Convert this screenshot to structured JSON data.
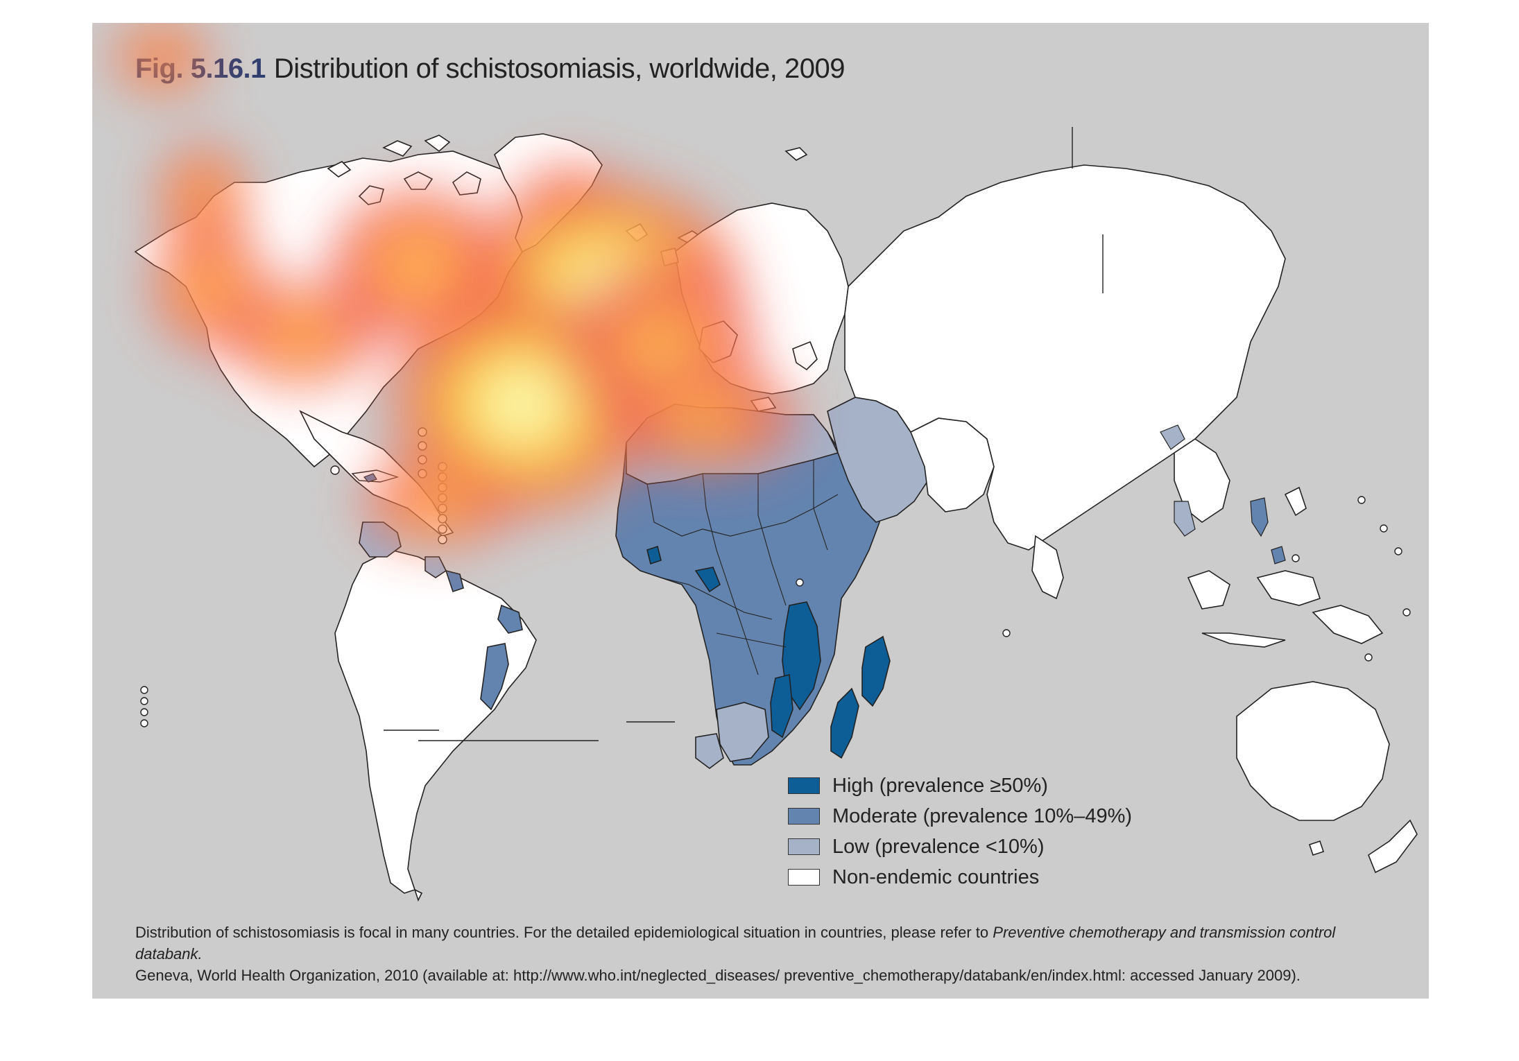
{
  "figure": {
    "number": "Fig. 5.16.1",
    "title": "Distribution of schistosomiasis, worldwide, 2009"
  },
  "legend": {
    "items": [
      {
        "label": "High (prevalence ≥50%)",
        "color": "#0d5d96"
      },
      {
        "label": "Moderate (prevalence 10%–49%)",
        "color": "#6484b0"
      },
      {
        "label": "Low (prevalence <10%)",
        "color": "#a5b2c8"
      },
      {
        "label": "Non-endemic countries",
        "color": "#ffffff"
      }
    ]
  },
  "footnote": {
    "line1_text": "Distribution of schistosomiasis is focal in many countries. For the detailed epidemiological situation in countries, please refer to ",
    "line1_italic": "Preventive chemotherapy and transmission control databank.",
    "line2_text": "Geneva, World Health Organization, 2010 (available at: http://www.who.int/neglected_diseases/ preventive_chemotherapy/databank/en/index.html: accessed January 2009)."
  },
  "colors": {
    "background": "#cccccc",
    "high": "#0d5d96",
    "moderate": "#6484b0",
    "low": "#a5b2c8",
    "non_endemic": "#ffffff"
  }
}
